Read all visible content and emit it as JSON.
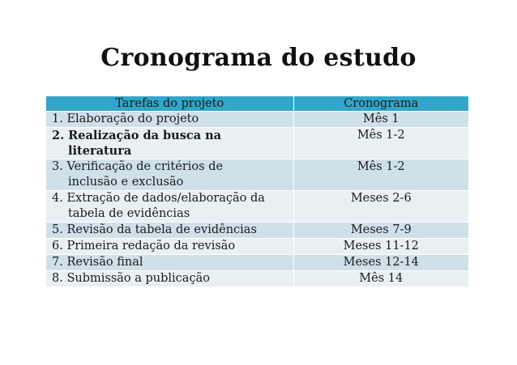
{
  "title": "Cronograma do estudo",
  "table": {
    "headers": [
      "Tarefas do projeto",
      "Cronograma"
    ],
    "rows": [
      {
        "task": "1. Elaboração do projeto",
        "task_cont": "",
        "when": "Mês 1"
      },
      {
        "task": "2. Realização da busca na",
        "task_cont": "literatura",
        "when": "Mês 1-2"
      },
      {
        "task": "3. Verificação de critérios de",
        "task_cont": "inclusão e exclusão",
        "when": "Mês 1-2"
      },
      {
        "task": "4. Extração de dados/elaboração da",
        "task_cont": "tabela de evidências",
        "when": "Meses 2-6"
      },
      {
        "task": "5. Revisão da tabela de evidências",
        "task_cont": "",
        "when": "Meses 7-9"
      },
      {
        "task": "6. Primeira redação da revisão",
        "task_cont": "",
        "when": "Meses 11-12"
      },
      {
        "task": "7. Revisão final",
        "task_cont": "",
        "when": "Meses 12-14"
      },
      {
        "task": "8. Submissão a publicação",
        "task_cont": "",
        "when": "Mês 14"
      }
    ]
  },
  "colors": {
    "header_bg": "#33a5c9",
    "row_odd_bg": "#cfe0e9",
    "row_even_bg": "#e9f0f4"
  }
}
